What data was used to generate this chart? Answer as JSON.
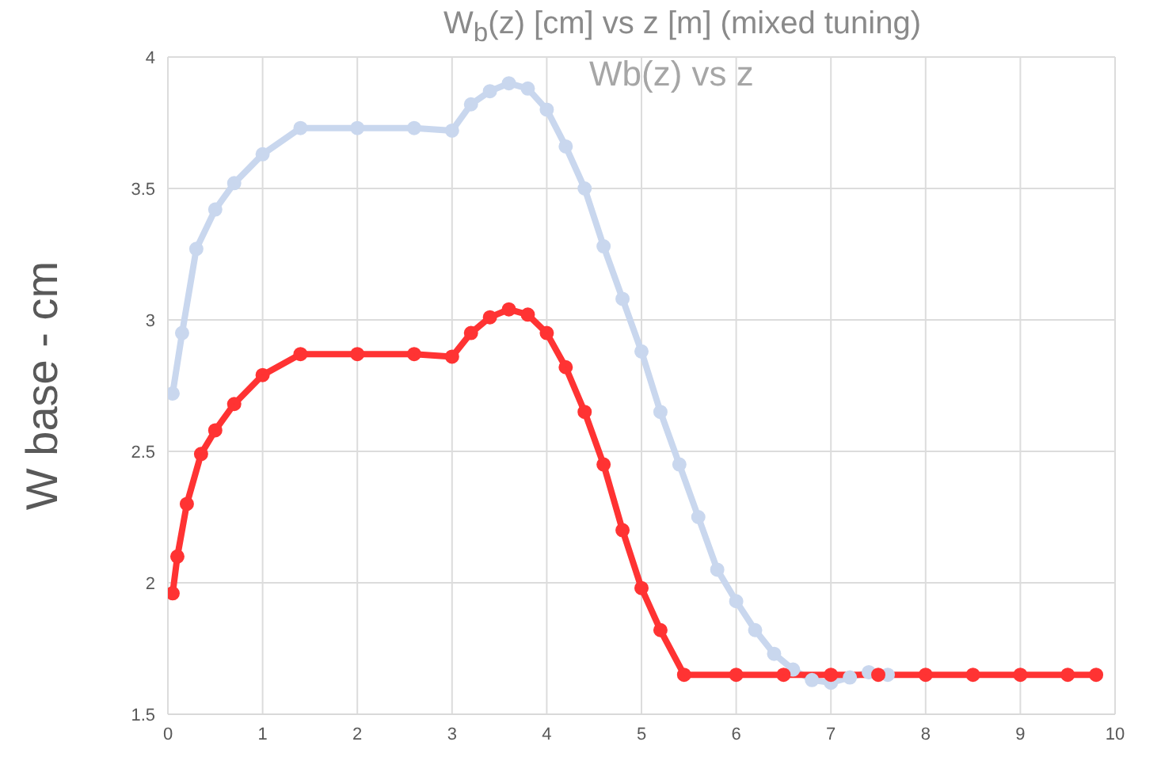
{
  "chart_data": {
    "type": "line",
    "title": "W$_{b}$(z) [cm] vs z [m] (mixed tuning)",
    "subtitle": "Wb(z) vs z",
    "ylabel": "W base - cm",
    "xlim": [
      0,
      10
    ],
    "xticks": [
      0,
      1,
      2,
      3,
      4,
      5,
      6,
      7,
      8,
      9,
      10
    ],
    "ylim": [
      1.5,
      4
    ],
    "yticks": [
      1.5,
      2,
      2.5,
      3,
      3.5,
      4
    ],
    "grid": true,
    "marker": "circle",
    "series": [
      {
        "color": "#c9d7ee",
        "x": [
          0.05,
          0.15,
          0.3,
          0.5,
          0.7,
          1.0,
          1.4,
          2,
          2.6,
          3.0,
          3.2,
          3.4,
          3.6,
          3.8,
          4.0,
          4.2,
          4.4,
          4.6,
          4.8,
          5.0,
          5.2,
          5.4,
          5.6,
          5.8,
          6.0,
          6.2,
          6.4,
          6.6,
          6.8,
          7.0,
          7.2,
          7.4,
          7.6
        ],
        "values": [
          2.72,
          2.95,
          3.27,
          3.42,
          3.52,
          3.63,
          3.73,
          3.73,
          3.73,
          3.72,
          3.82,
          3.87,
          3.9,
          3.88,
          3.8,
          3.66,
          3.5,
          3.28,
          3.08,
          2.88,
          2.65,
          2.45,
          2.25,
          2.05,
          1.93,
          1.82,
          1.73,
          1.67,
          1.63,
          1.62,
          1.64,
          1.66,
          1.65
        ]
      },
      {
        "color": "#ff3333",
        "x": [
          0.05,
          0.1,
          0.2,
          0.35,
          0.5,
          0.7,
          1.0,
          1.4,
          2,
          2.6,
          3.0,
          3.2,
          3.4,
          3.6,
          3.8,
          4.0,
          4.2,
          4.4,
          4.6,
          4.8,
          5.0,
          5.2,
          5.45,
          6,
          6.5,
          7,
          7.5,
          8,
          8.5,
          9,
          9.5,
          9.8
        ],
        "values": [
          1.96,
          2.1,
          2.3,
          2.49,
          2.58,
          2.68,
          2.79,
          2.87,
          2.87,
          2.87,
          2.86,
          2.95,
          3.01,
          3.04,
          3.02,
          2.95,
          2.82,
          2.65,
          2.45,
          2.2,
          1.98,
          1.82,
          1.65,
          1.65,
          1.65,
          1.65,
          1.65,
          1.65,
          1.65,
          1.65,
          1.65,
          1.65
        ]
      }
    ]
  }
}
